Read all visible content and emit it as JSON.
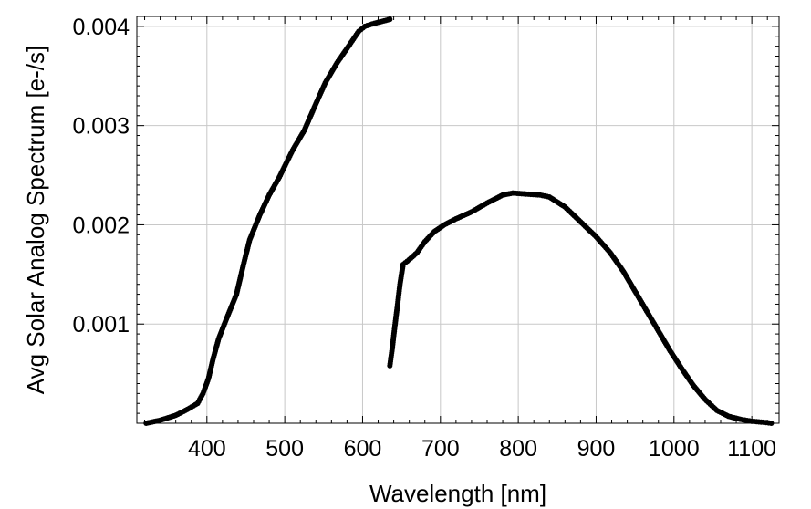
{
  "chart_data": {
    "type": "scatter",
    "title": "",
    "xlabel": "Wavelength [nm]",
    "ylabel": "Avg Solar Analog Spectrum [e-/s]",
    "xlim": [
      310,
      1135
    ],
    "ylim": [
      0,
      0.0041
    ],
    "x_ticks": [
      400,
      500,
      600,
      700,
      800,
      900,
      1000,
      1100
    ],
    "x_tick_labels": [
      "400",
      "500",
      "600",
      "700",
      "800",
      "900",
      "1000",
      "1100"
    ],
    "y_ticks": [
      0.001,
      0.002,
      0.003,
      0.004
    ],
    "y_tick_labels": [
      "0.001",
      "0.002",
      "0.003",
      "0.004"
    ],
    "grid": true,
    "legend": "none",
    "marker_color": "#000000",
    "series": [
      {
        "points": [
          [
            322,
            0.0
          ],
          [
            340,
            3e-05
          ],
          [
            360,
            8e-05
          ],
          [
            375,
            0.00014
          ],
          [
            388,
            0.0002
          ],
          [
            395,
            0.0003
          ],
          [
            402,
            0.00045
          ],
          [
            408,
            0.00065
          ],
          [
            415,
            0.00085
          ],
          [
            425,
            0.00105
          ],
          [
            438,
            0.0013
          ],
          [
            447,
            0.0016
          ],
          [
            455,
            0.00185
          ],
          [
            468,
            0.0021
          ],
          [
            480,
            0.0023
          ],
          [
            493,
            0.00248
          ],
          [
            510,
            0.00275
          ],
          [
            525,
            0.00295
          ],
          [
            540,
            0.00322
          ],
          [
            552,
            0.00343
          ],
          [
            567,
            0.00363
          ],
          [
            582,
            0.0038
          ],
          [
            595,
            0.00395
          ],
          [
            603,
            0.004
          ],
          [
            615,
            0.00403
          ],
          [
            625,
            0.00405
          ],
          [
            635,
            0.00407
          ]
        ]
      },
      {
        "points": [
          [
            635,
            0.00058
          ],
          [
            638,
            0.00075
          ],
          [
            641,
            0.00095
          ],
          [
            645,
            0.0012
          ],
          [
            648,
            0.0014
          ],
          [
            652,
            0.0016
          ],
          [
            660,
            0.00165
          ],
          [
            670,
            0.00172
          ],
          [
            680,
            0.00183
          ],
          [
            692,
            0.00193
          ],
          [
            705,
            0.002
          ],
          [
            720,
            0.00206
          ],
          [
            740,
            0.00213
          ],
          [
            760,
            0.00222
          ],
          [
            780,
            0.0023
          ],
          [
            793,
            0.00232
          ],
          [
            810,
            0.00231
          ],
          [
            828,
            0.0023
          ],
          [
            840,
            0.00228
          ],
          [
            860,
            0.00218
          ],
          [
            880,
            0.00203
          ],
          [
            900,
            0.00188
          ],
          [
            918,
            0.00172
          ],
          [
            935,
            0.00153
          ],
          [
            950,
            0.00133
          ],
          [
            965,
            0.00113
          ],
          [
            980,
            0.00093
          ],
          [
            995,
            0.00073
          ],
          [
            1010,
            0.00055
          ],
          [
            1025,
            0.00038
          ],
          [
            1040,
            0.00024
          ],
          [
            1055,
            0.00013
          ],
          [
            1070,
            7e-05
          ],
          [
            1085,
            4e-05
          ],
          [
            1100,
            2e-05
          ],
          [
            1115,
            1e-05
          ],
          [
            1125,
            0.0
          ]
        ]
      }
    ]
  }
}
